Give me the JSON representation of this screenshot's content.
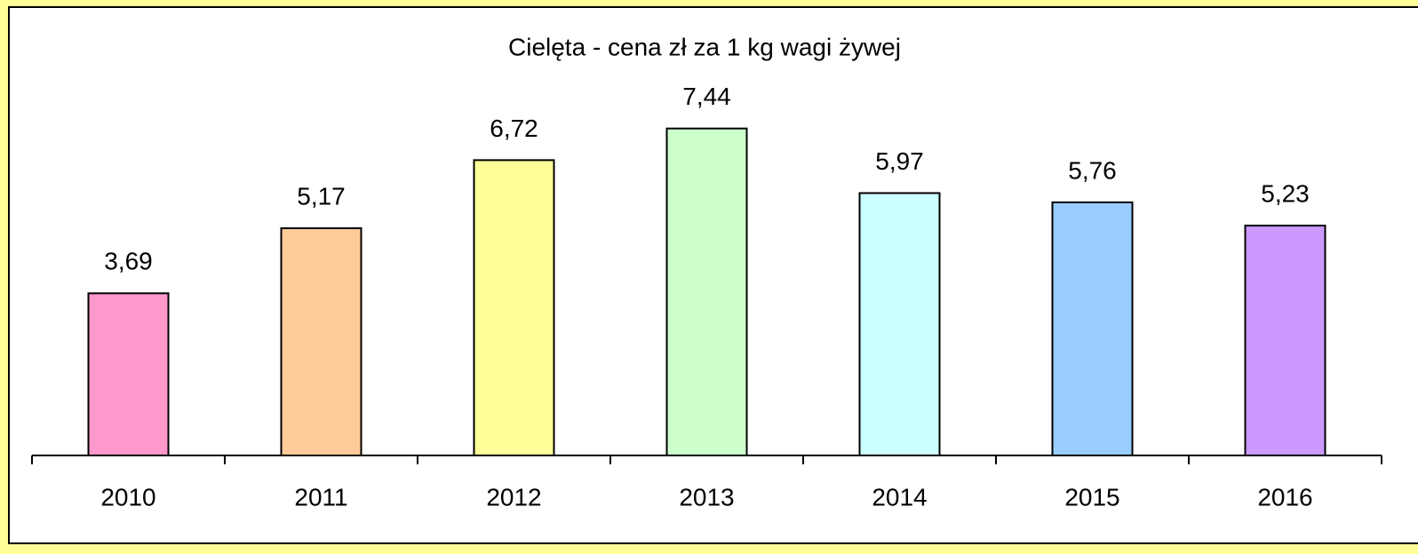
{
  "chart_data": {
    "type": "bar",
    "title": "Cielęta - cena  zł za 1 kg wagi żywej",
    "categories": [
      "2010",
      "2011",
      "2012",
      "2013",
      "2014",
      "2015",
      "2016"
    ],
    "values": [
      3.69,
      5.17,
      6.72,
      7.44,
      5.97,
      5.76,
      5.23
    ],
    "value_labels": [
      "3,69",
      "5,17",
      "6,72",
      "7,44",
      "5,97",
      "5,76",
      "5,23"
    ],
    "colors": [
      "#ff99cc",
      "#ffcc99",
      "#ffff99",
      "#ccffcc",
      "#ccffff",
      "#99ccff",
      "#cc99ff"
    ],
    "ylim": [
      0,
      8
    ]
  }
}
